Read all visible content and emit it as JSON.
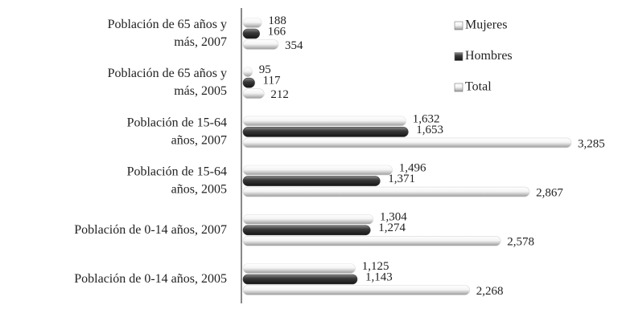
{
  "chart_data": {
    "type": "bar",
    "orientation": "horizontal",
    "categories": [
      "Población de 65 años y más, 2007",
      "Población de 65 años y más, 2005",
      "Población de 15-64 años, 2007",
      "Población de 15-64 años, 2005",
      "Población de 0-14 años, 2007",
      "Población de 0-14 años, 2005"
    ],
    "series": [
      {
        "name": "Mujeres",
        "color": "#e2e2e2",
        "values": [
          188,
          95,
          1632,
          1496,
          1304,
          1125
        ],
        "value_labels": [
          "188",
          "95",
          "1,632",
          "1,496",
          "1,304",
          "1,125"
        ]
      },
      {
        "name": "Hombres",
        "color": "#3a3a3a",
        "values": [
          166,
          117,
          1653,
          1371,
          1274,
          1143
        ],
        "value_labels": [
          "166",
          "117",
          "1,653",
          "1,371",
          "1,274",
          "1,143"
        ]
      },
      {
        "name": "Total",
        "color": "#d6d6d6",
        "values": [
          354,
          212,
          3285,
          2867,
          2578,
          2268
        ],
        "value_labels": [
          "354",
          "212",
          "3,285",
          "2,867",
          "2,578",
          "2,268"
        ]
      }
    ],
    "legend": "right"
  }
}
